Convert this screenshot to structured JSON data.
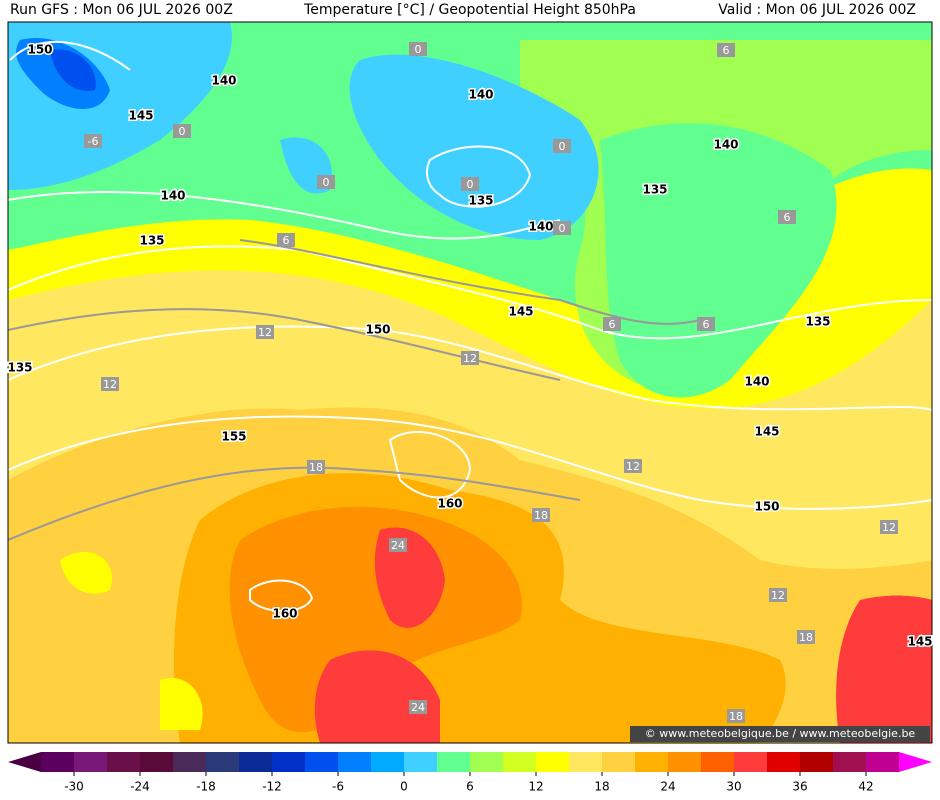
{
  "header": {
    "left": "Run GFS : Mon 06 JUL 2026 00Z",
    "center": "Temperature [°C] / Geopotential Height 850hPa",
    "right": "Valid : Mon 06 JUL 2026 00Z"
  },
  "watermark": "© www.meteobelgique.be / www.meteobelgie.be",
  "height_labels": [
    150,
    140,
    145,
    140,
    140,
    135,
    135,
    140,
    140,
    135,
    145,
    150,
    135,
    135,
    140,
    155,
    145,
    160,
    150,
    160,
    145
  ],
  "temperature_labels": [
    0,
    6,
    -6,
    0,
    0,
    0,
    0,
    0,
    6,
    6,
    6,
    6,
    12,
    12,
    12,
    12,
    18,
    18,
    24,
    12,
    12,
    18,
    24,
    18
  ],
  "colorbar": {
    "lim": [
      -33,
      45
    ],
    "colors": [
      "#5c0060",
      "#7a1878",
      "#6a1048",
      "#5a0a38",
      "#4a2a58",
      "#2a3a78",
      "#0a2a98",
      "#0030c8",
      "#0050f0",
      "#0080ff",
      "#00aaff",
      "#40d0ff",
      "#60ff90",
      "#a0ff50",
      "#d0ff20",
      "#ffff00",
      "#ffe860",
      "#ffd040",
      "#ffb000",
      "#ff9000",
      "#ff6000",
      "#ff3c3c",
      "#e00000",
      "#b00000",
      "#a01050",
      "#c00090"
    ],
    "under_color": "#4a0040",
    "over_color": "#ff00ff",
    "ticks": [
      -30,
      -24,
      -18,
      -12,
      -6,
      0,
      6,
      12,
      18,
      24,
      30,
      36,
      42
    ]
  }
}
